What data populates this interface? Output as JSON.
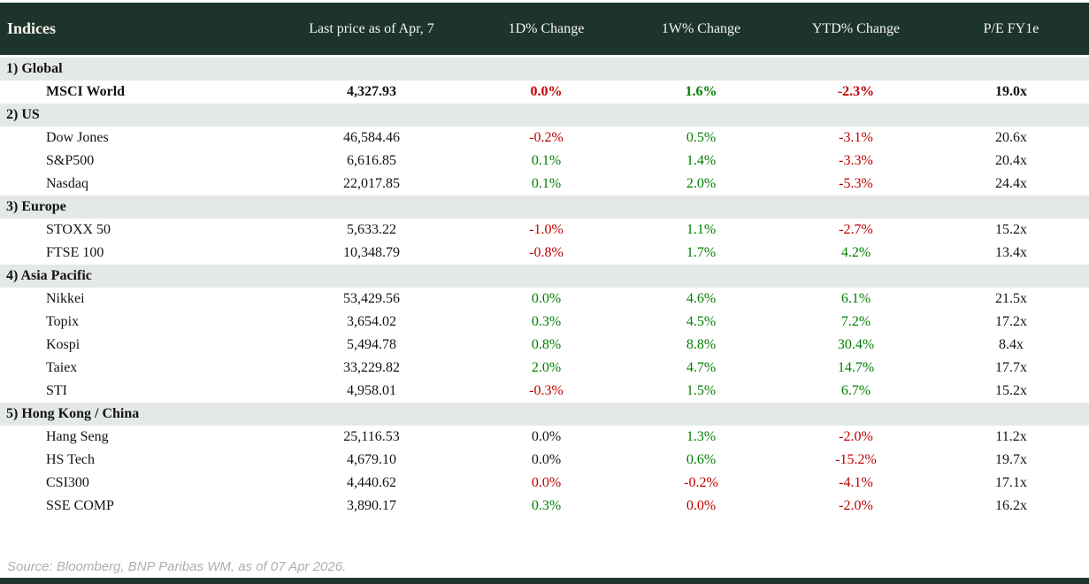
{
  "colors": {
    "header_bg": "#1c342d",
    "header_fg": "#f6f3ea",
    "section_bg": "#e5e9e6",
    "positive": "#008000",
    "negative": "#c00000",
    "source_fg": "#a9b0b6"
  },
  "footer": {
    "source": "Source: Bloomberg, BNP Paribas WM, as of 07 Apr 2026."
  },
  "chart_data": {
    "type": "table",
    "title": "Indices",
    "columns": [
      "Indices",
      "Last price as of Apr, 7",
      "1D% Change",
      "1W% Change",
      "YTD% Change",
      "P/E FY1e"
    ],
    "sections": [
      {
        "label": "1) Global",
        "rows": [
          {
            "name": "MSCI World",
            "last_price": "4,327.93",
            "d1_change": "0.0%",
            "d1_sentiment": "negative",
            "w1_change": "1.6%",
            "w1_sentiment": "positive",
            "ytd_change": "-2.3%",
            "ytd_sentiment": "negative",
            "pe_fy1e": "19.0x",
            "bold": true
          }
        ]
      },
      {
        "label": "2) US",
        "rows": [
          {
            "name": "Dow Jones",
            "last_price": "46,584.46",
            "d1_change": "-0.2%",
            "d1_sentiment": "negative",
            "w1_change": "0.5%",
            "w1_sentiment": "positive",
            "ytd_change": "-3.1%",
            "ytd_sentiment": "negative",
            "pe_fy1e": "20.6x",
            "bold": false
          },
          {
            "name": "S&P500",
            "last_price": "6,616.85",
            "d1_change": "0.1%",
            "d1_sentiment": "positive",
            "w1_change": "1.4%",
            "w1_sentiment": "positive",
            "ytd_change": "-3.3%",
            "ytd_sentiment": "negative",
            "pe_fy1e": "20.4x",
            "bold": false
          },
          {
            "name": "Nasdaq",
            "last_price": "22,017.85",
            "d1_change": "0.1%",
            "d1_sentiment": "positive",
            "w1_change": "2.0%",
            "w1_sentiment": "positive",
            "ytd_change": "-5.3%",
            "ytd_sentiment": "negative",
            "pe_fy1e": "24.4x",
            "bold": false
          }
        ]
      },
      {
        "label": "3) Europe",
        "rows": [
          {
            "name": "STOXX 50",
            "last_price": "5,633.22",
            "d1_change": "-1.0%",
            "d1_sentiment": "negative",
            "w1_change": "1.1%",
            "w1_sentiment": "positive",
            "ytd_change": "-2.7%",
            "ytd_sentiment": "negative",
            "pe_fy1e": "15.2x",
            "bold": false
          },
          {
            "name": "FTSE 100",
            "last_price": "10,348.79",
            "d1_change": "-0.8%",
            "d1_sentiment": "negative",
            "w1_change": "1.7%",
            "w1_sentiment": "positive",
            "ytd_change": "4.2%",
            "ytd_sentiment": "positive",
            "pe_fy1e": "13.4x",
            "bold": false
          }
        ]
      },
      {
        "label": "4) Asia Pacific",
        "rows": [
          {
            "name": "Nikkei",
            "last_price": "53,429.56",
            "d1_change": "0.0%",
            "d1_sentiment": "positive",
            "w1_change": "4.6%",
            "w1_sentiment": "positive",
            "ytd_change": "6.1%",
            "ytd_sentiment": "positive",
            "pe_fy1e": "21.5x",
            "bold": false
          },
          {
            "name": "Topix",
            "last_price": "3,654.02",
            "d1_change": "0.3%",
            "d1_sentiment": "positive",
            "w1_change": "4.5%",
            "w1_sentiment": "positive",
            "ytd_change": "7.2%",
            "ytd_sentiment": "positive",
            "pe_fy1e": "17.2x",
            "bold": false
          },
          {
            "name": "Kospi",
            "last_price": "5,494.78",
            "d1_change": "0.8%",
            "d1_sentiment": "positive",
            "w1_change": "8.8%",
            "w1_sentiment": "positive",
            "ytd_change": "30.4%",
            "ytd_sentiment": "positive",
            "pe_fy1e": "8.4x",
            "bold": false
          },
          {
            "name": "Taiex",
            "last_price": "33,229.82",
            "d1_change": "2.0%",
            "d1_sentiment": "positive",
            "w1_change": "4.7%",
            "w1_sentiment": "positive",
            "ytd_change": "14.7%",
            "ytd_sentiment": "positive",
            "pe_fy1e": "17.7x",
            "bold": false
          },
          {
            "name": "STI",
            "last_price": "4,958.01",
            "d1_change": "-0.3%",
            "d1_sentiment": "negative",
            "w1_change": "1.5%",
            "w1_sentiment": "positive",
            "ytd_change": "6.7%",
            "ytd_sentiment": "positive",
            "pe_fy1e": "15.2x",
            "bold": false
          }
        ]
      },
      {
        "label": "5) Hong Kong / China",
        "rows": [
          {
            "name": "Hang Seng",
            "last_price": "25,116.53",
            "d1_change": "0.0%",
            "d1_sentiment": "neutral",
            "w1_change": "1.3%",
            "w1_sentiment": "positive",
            "ytd_change": "-2.0%",
            "ytd_sentiment": "negative",
            "pe_fy1e": "11.2x",
            "bold": false
          },
          {
            "name": "HS Tech",
            "last_price": "4,679.10",
            "d1_change": "0.0%",
            "d1_sentiment": "neutral",
            "w1_change": "0.6%",
            "w1_sentiment": "positive",
            "ytd_change": "-15.2%",
            "ytd_sentiment": "negative",
            "pe_fy1e": "19.7x",
            "bold": false
          },
          {
            "name": "CSI300",
            "last_price": "4,440.62",
            "d1_change": "0.0%",
            "d1_sentiment": "negative",
            "w1_change": "-0.2%",
            "w1_sentiment": "negative",
            "ytd_change": "-4.1%",
            "ytd_sentiment": "negative",
            "pe_fy1e": "17.1x",
            "bold": false
          },
          {
            "name": "SSE COMP",
            "last_price": "3,890.17",
            "d1_change": "0.3%",
            "d1_sentiment": "positive",
            "w1_change": "0.0%",
            "w1_sentiment": "negative",
            "ytd_change": "-2.0%",
            "ytd_sentiment": "negative",
            "pe_fy1e": "16.2x",
            "bold": false
          }
        ]
      }
    ]
  }
}
